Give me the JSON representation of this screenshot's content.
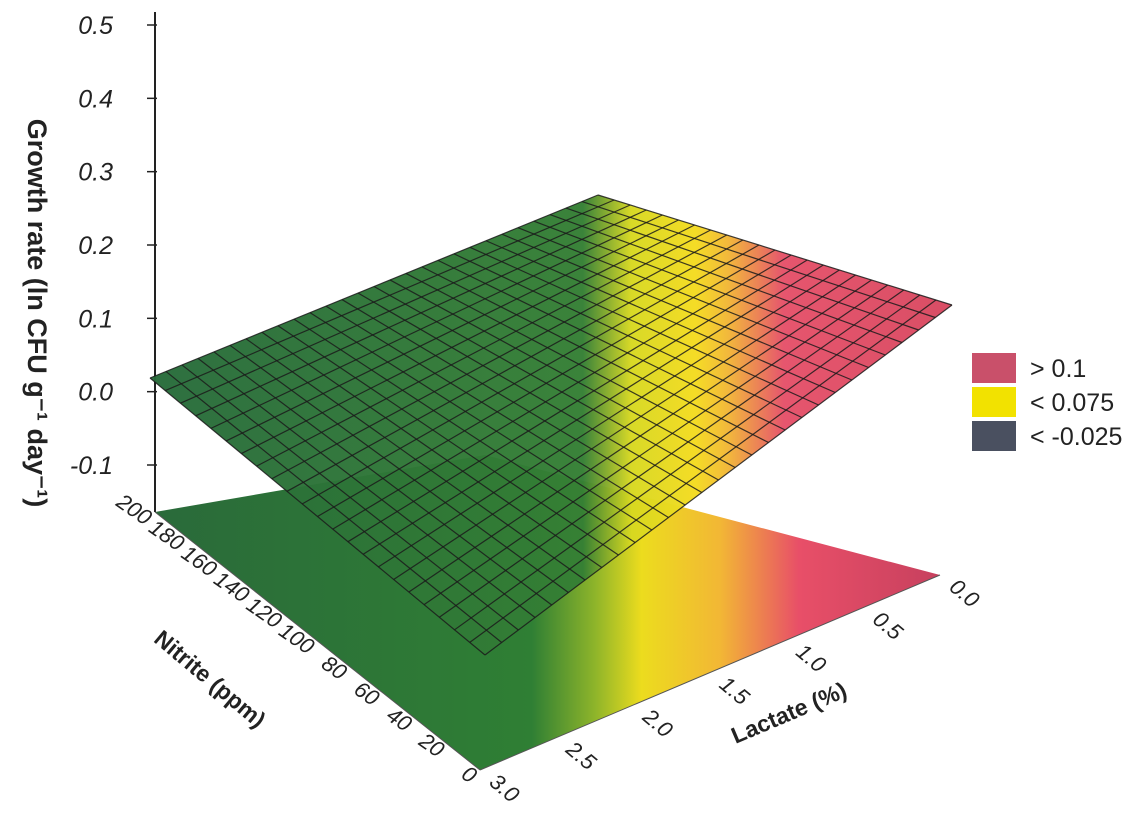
{
  "chart_data": {
    "type": "surface3d",
    "ylabel": "Growth rate (ln CFU g⁻¹ day⁻¹)",
    "xlabel": "Nitrite (ppm)",
    "zlabel_lactate": "Lactate (%)",
    "z_ticks": [
      "0.5",
      "0.4",
      "0.3",
      "0.2",
      "0.1",
      "0.0",
      "-0.1"
    ],
    "nitrite_ticks": [
      "200",
      "180",
      "160",
      "140",
      "120",
      "100",
      "80",
      "60",
      "40",
      "20",
      "0"
    ],
    "lactate_ticks": [
      "0.0",
      "0.5",
      "1.0",
      "1.5",
      "2.0",
      "2.5",
      "3.0"
    ],
    "nitrite_range": [
      0,
      200
    ],
    "lactate_range": [
      0,
      3.0
    ],
    "growth_range": [
      -0.1,
      0.5
    ],
    "surface_corners": [
      {
        "nitrite": 200,
        "lactate": 3.0,
        "growth": 0.0
      },
      {
        "nitrite": 200,
        "lactate": 0.0,
        "growth": 0.2
      },
      {
        "nitrite": 0,
        "lactate": 0.0,
        "growth": 0.12
      },
      {
        "nitrite": 0,
        "lactate": 3.0,
        "growth": -0.08
      }
    ],
    "legend": [
      {
        "label": "> 0.1",
        "color": "#c9506a"
      },
      {
        "label": "< 0.075",
        "color": "#f2e200"
      },
      {
        "label": "< -0.025",
        "color": "#4a5060"
      }
    ],
    "colors": {
      "green": "#2f7f34",
      "dark_green": "#245f34",
      "yellow": "#e9de1d",
      "orange": "#f2b735",
      "pink": "#e84f68",
      "red": "#c9405d",
      "grid": "#1b1b1b"
    }
  }
}
